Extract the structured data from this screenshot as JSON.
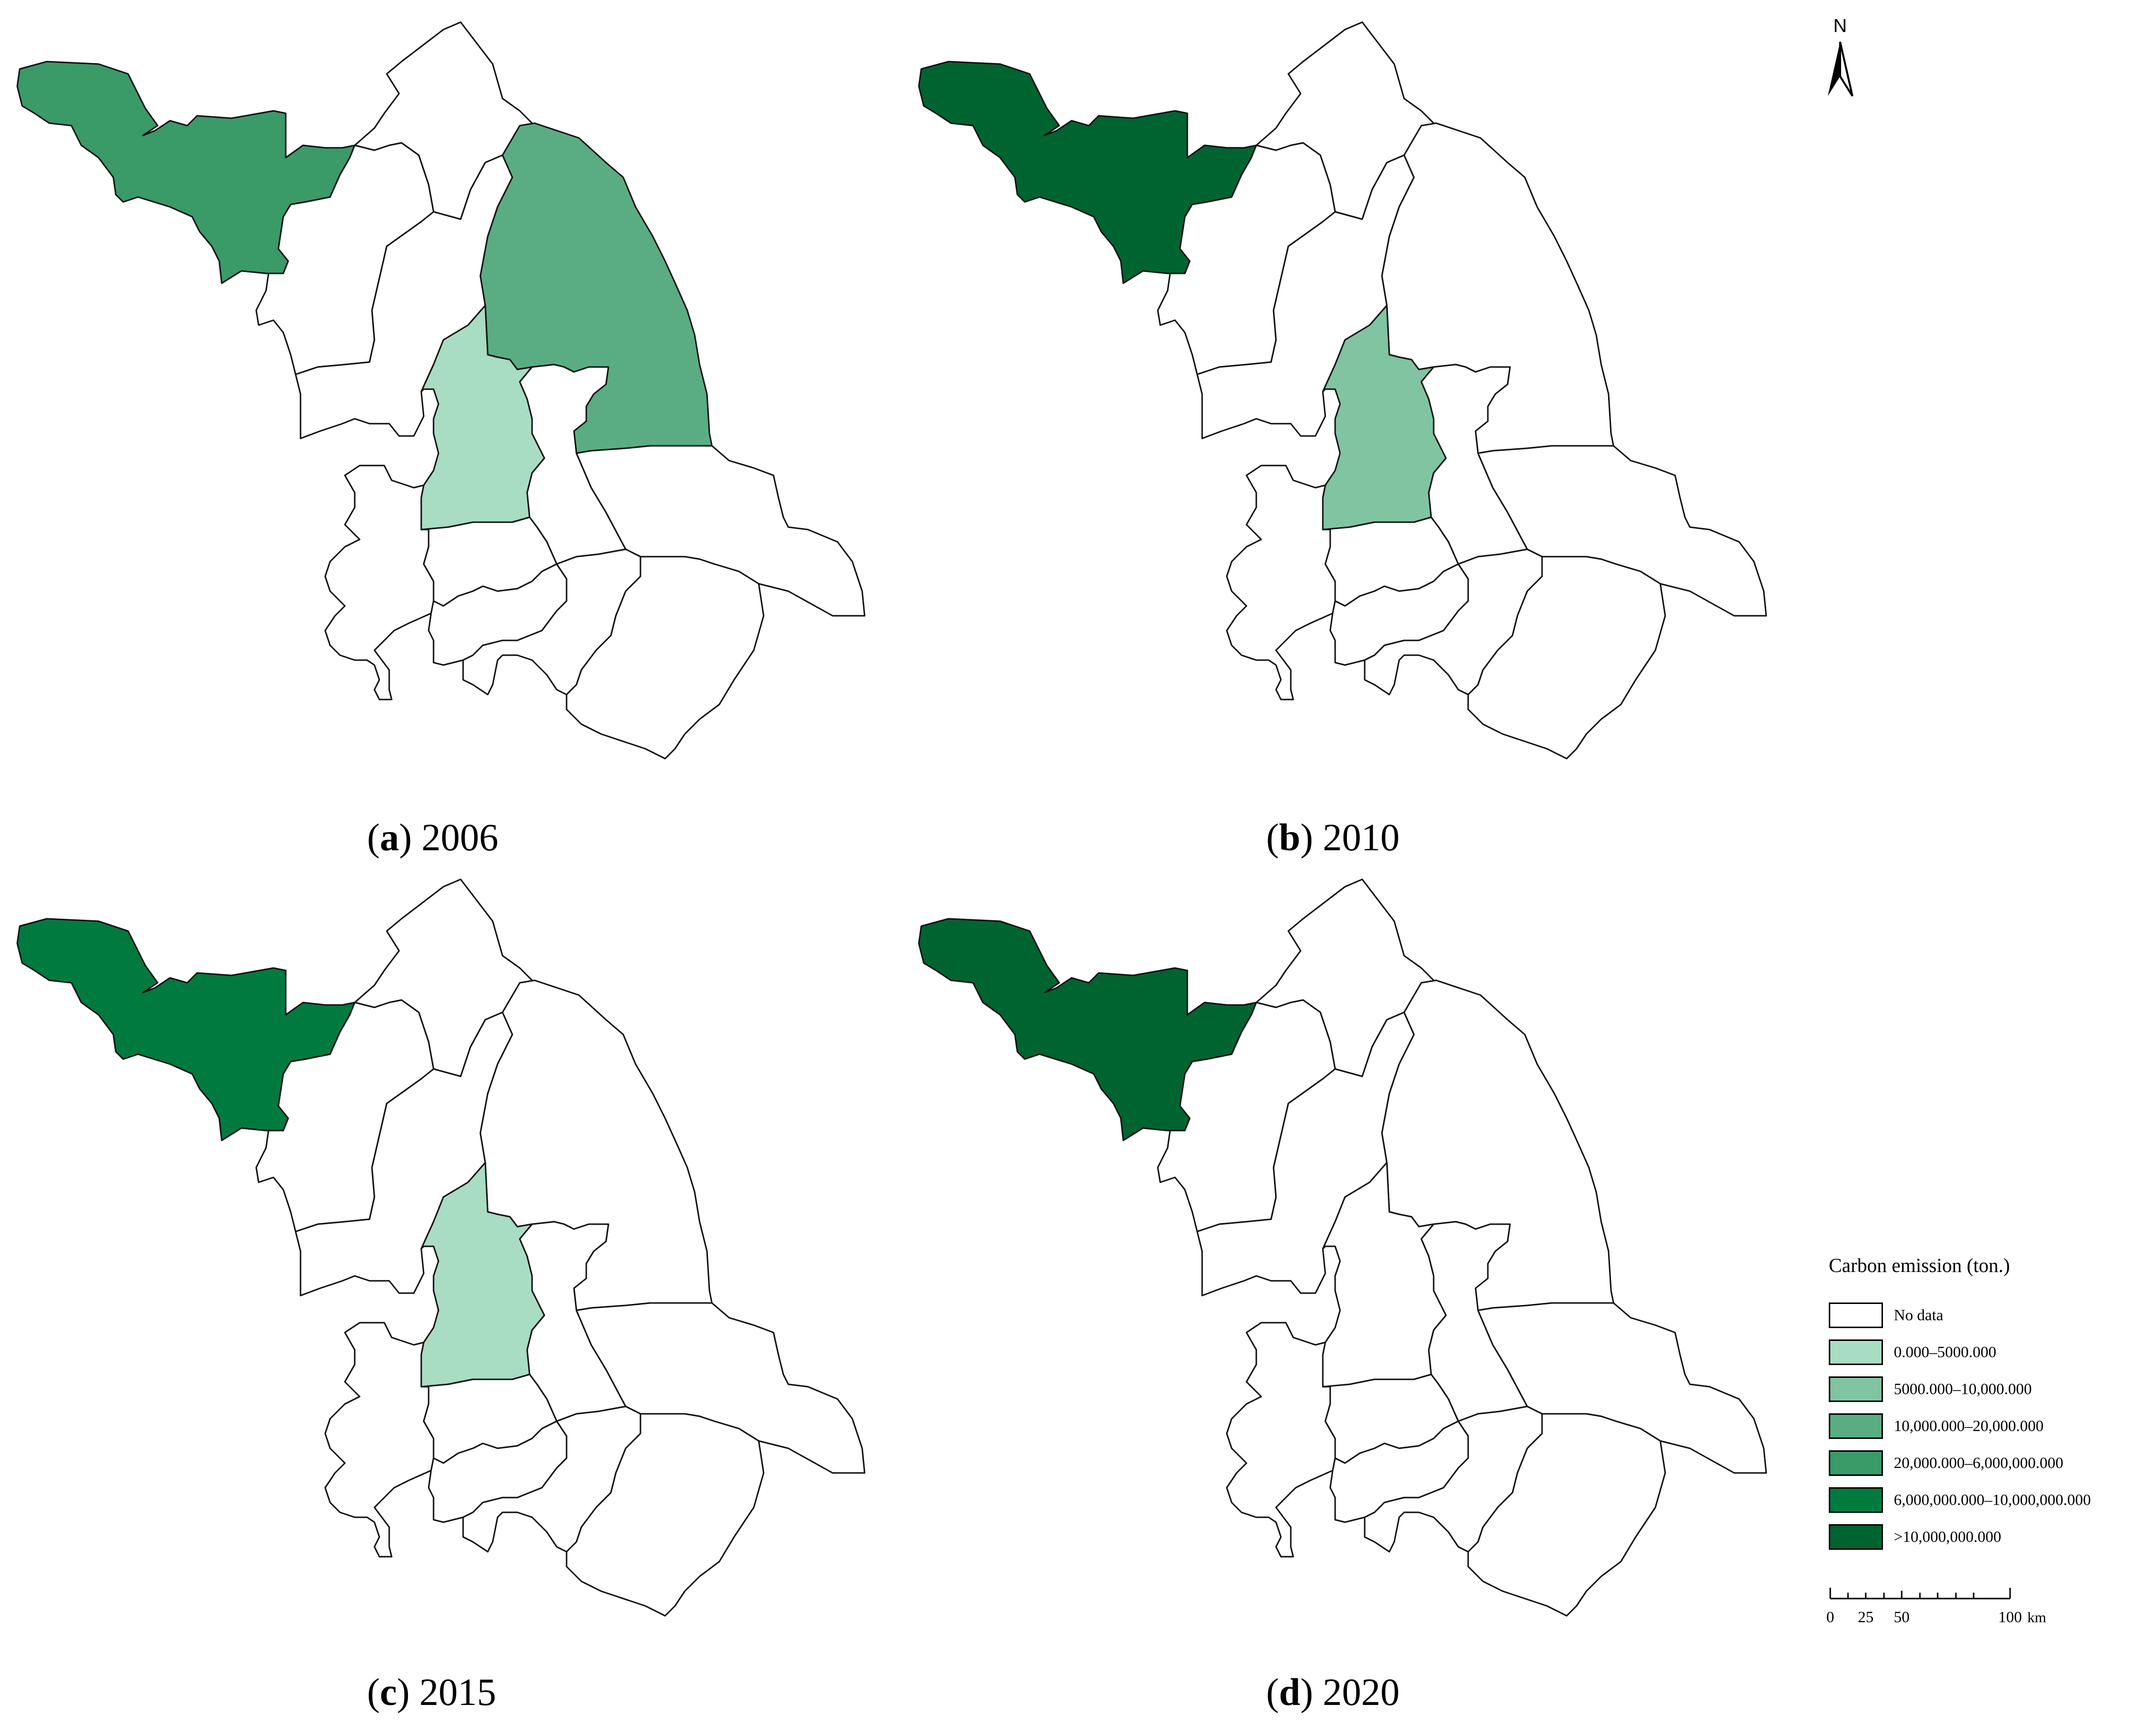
{
  "panels": [
    {
      "id": "a",
      "label": "a",
      "year": "2006",
      "fills": {
        "nw": "cls3",
        "yancheng": "cls2",
        "center": "cls0"
      }
    },
    {
      "id": "b",
      "label": "b",
      "year": "2010",
      "fills": {
        "nw": "cls5",
        "yancheng": "none",
        "center": "cls1"
      }
    },
    {
      "id": "c",
      "label": "c",
      "year": "2015",
      "fills": {
        "nw": "cls4",
        "yancheng": "none",
        "center": "cls0"
      }
    },
    {
      "id": "d",
      "label": "d",
      "year": "2020",
      "fills": {
        "nw": "cls5",
        "yancheng": "none",
        "center": "none"
      }
    }
  ],
  "legend": {
    "title": "Carbon emission (ton.)",
    "classes": [
      {
        "key": "none",
        "label": "No data",
        "color": "#ffffff"
      },
      {
        "key": "cls0",
        "label": "0.000–5000.000",
        "color": "#a8dcc3"
      },
      {
        "key": "cls1",
        "label": "5000.000–10,000.000",
        "color": "#80c4a2"
      },
      {
        "key": "cls2",
        "label": "10,000.000–20,000.000",
        "color": "#5aad82"
      },
      {
        "key": "cls3",
        "label": "20,000.000–6,000,000.000",
        "color": "#3a9a68"
      },
      {
        "key": "cls4",
        "label": "6,000,000.000–10,000,000.000",
        "color": "#017a3f"
      },
      {
        "key": "cls5",
        "label": ">10,000,000.000",
        "color": "#006431"
      }
    ]
  },
  "north_arrow": {
    "label": "N"
  },
  "scale_bar": {
    "ticks": [
      "0",
      "25",
      "50",
      "100"
    ],
    "unit": "km"
  }
}
